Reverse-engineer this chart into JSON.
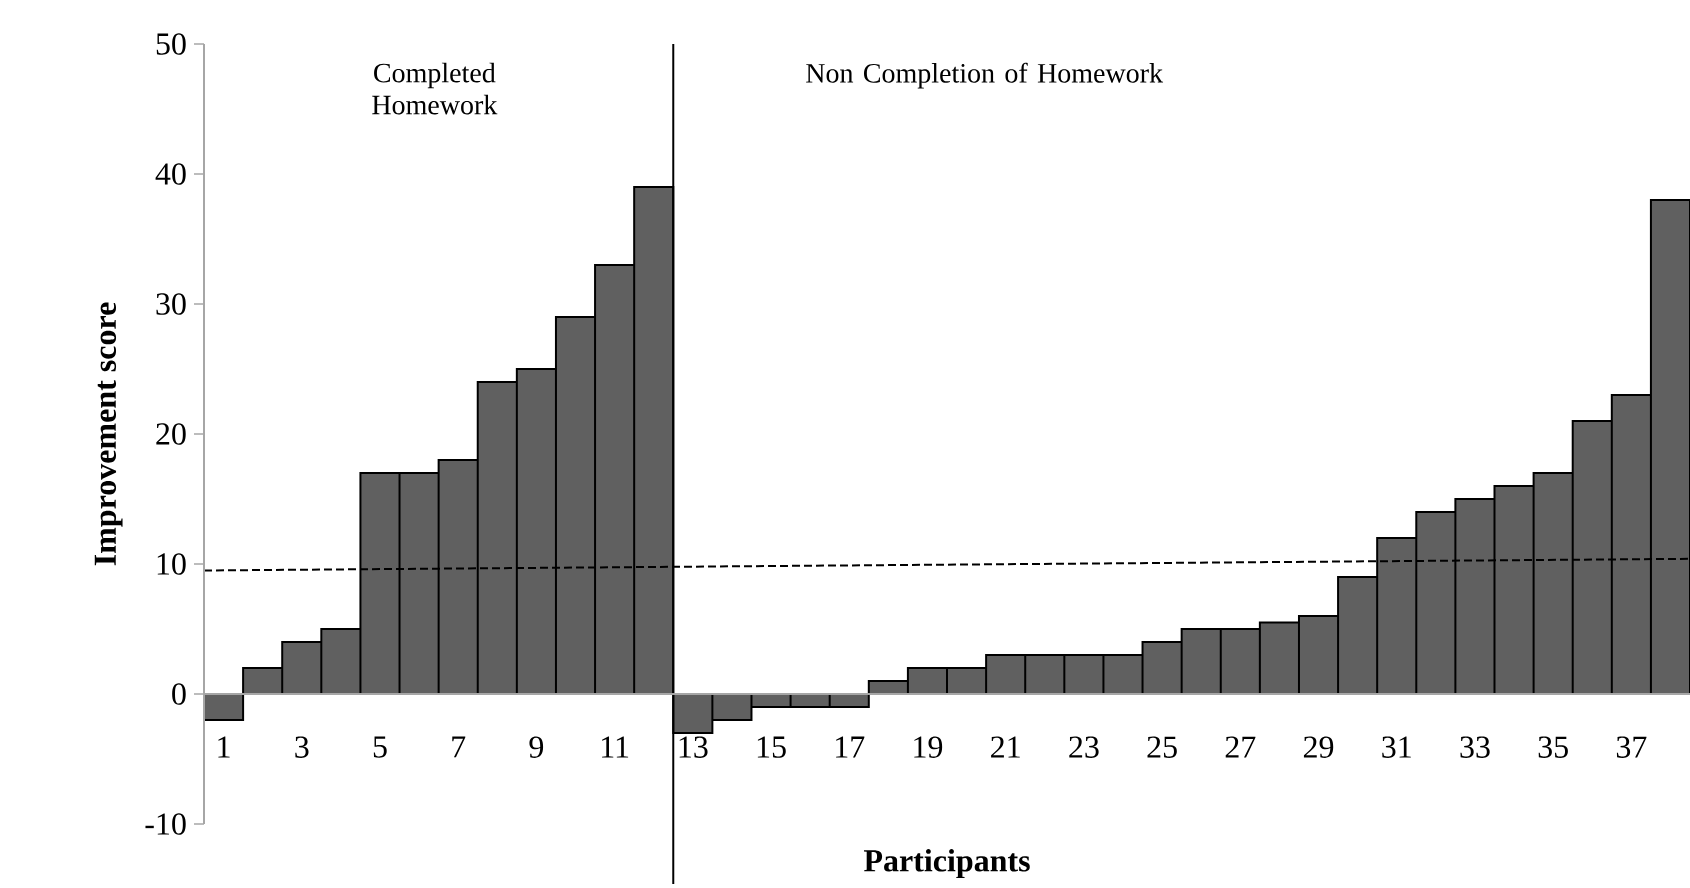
{
  "chart_data": {
    "type": "bar",
    "xlabel": "Participants",
    "ylabel": "Improvement score",
    "x": [
      1,
      2,
      3,
      4,
      5,
      6,
      7,
      8,
      9,
      10,
      11,
      12,
      13,
      14,
      15,
      16,
      17,
      18,
      19,
      20,
      21,
      22,
      23,
      24,
      25,
      26,
      27,
      28,
      29,
      30,
      31,
      32,
      33,
      34,
      35,
      36,
      37,
      38
    ],
    "series": [
      {
        "color": "#606060",
        "values": [
          -2,
          2,
          4,
          5,
          17,
          17,
          18,
          24,
          25,
          29,
          33,
          39,
          -3,
          -2,
          -1,
          -1,
          -1,
          1,
          2,
          2,
          3,
          3,
          3,
          3,
          4,
          5,
          5,
          5.5,
          6,
          9,
          12,
          14,
          15,
          16,
          17,
          21,
          23,
          38
        ]
      },
      {
        "type": "line",
        "x": [
          0.5,
          38.5
        ],
        "values": [
          9.5,
          10.4
        ],
        "color": "#000000",
        "line_style": "dashed"
      }
    ],
    "xlim": [
      0.5,
      38.5
    ],
    "xticks": [
      1,
      3,
      5,
      7,
      9,
      11,
      13,
      15,
      17,
      19,
      21,
      23,
      25,
      27,
      29,
      31,
      33,
      35,
      37
    ],
    "ylim": [
      -10,
      50
    ],
    "yticks": [
      -10,
      0,
      10,
      20,
      30,
      40,
      50
    ],
    "ref_lines": [
      {
        "axis": "x",
        "value": 12.5,
        "color": "#000000"
      }
    ],
    "annotations": [
      "Completed Homework",
      "Non Completion of Homework"
    ]
  }
}
